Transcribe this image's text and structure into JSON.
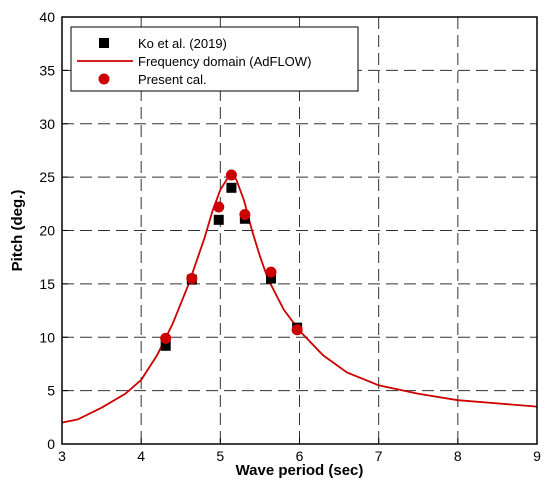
{
  "chart_data": {
    "type": "scatter",
    "xlabel": "Wave period (sec)",
    "ylabel": "Pitch (deg.)",
    "xlim": [
      3,
      9
    ],
    "ylim": [
      0,
      40
    ],
    "xticks": [
      3,
      4,
      5,
      6,
      7,
      8,
      9
    ],
    "yticks": [
      0,
      5,
      10,
      15,
      20,
      25,
      30,
      35,
      40
    ],
    "grid": true,
    "legend_position": "top-left",
    "series": [
      {
        "name": "Ko et al. (2019)",
        "kind": "marker-square",
        "color": "#000000",
        "x": [
          4.31,
          4.64,
          4.98,
          5.14,
          5.31,
          5.64,
          5.97
        ],
        "y": [
          9.2,
          15.4,
          21.0,
          24.0,
          21.1,
          15.5,
          10.9
        ]
      },
      {
        "name": "Frequency domain (AdFLOW)",
        "kind": "line",
        "color": "#cc0000",
        "x": [
          3.0,
          3.2,
          3.5,
          3.8,
          4.0,
          4.2,
          4.4,
          4.6,
          4.8,
          4.9,
          5.0,
          5.1,
          5.15,
          5.2,
          5.3,
          5.4,
          5.5,
          5.6,
          5.8,
          6.0,
          6.3,
          6.6,
          7.0,
          7.5,
          8.0,
          8.5,
          9.0
        ],
        "y": [
          2.0,
          2.3,
          3.4,
          4.7,
          6.0,
          8.3,
          11.3,
          15.0,
          19.3,
          21.8,
          23.8,
          25.0,
          25.1,
          24.8,
          22.8,
          20.0,
          17.6,
          15.5,
          12.6,
          10.6,
          8.3,
          6.7,
          5.5,
          4.7,
          4.1,
          3.8,
          3.5
        ]
      },
      {
        "name": "Present cal.",
        "kind": "marker-circle",
        "color": "#cc0000",
        "x": [
          4.31,
          4.64,
          4.98,
          5.14,
          5.31,
          5.64,
          5.97
        ],
        "y": [
          9.9,
          15.5,
          22.2,
          25.2,
          21.5,
          16.1,
          10.7
        ]
      }
    ]
  }
}
